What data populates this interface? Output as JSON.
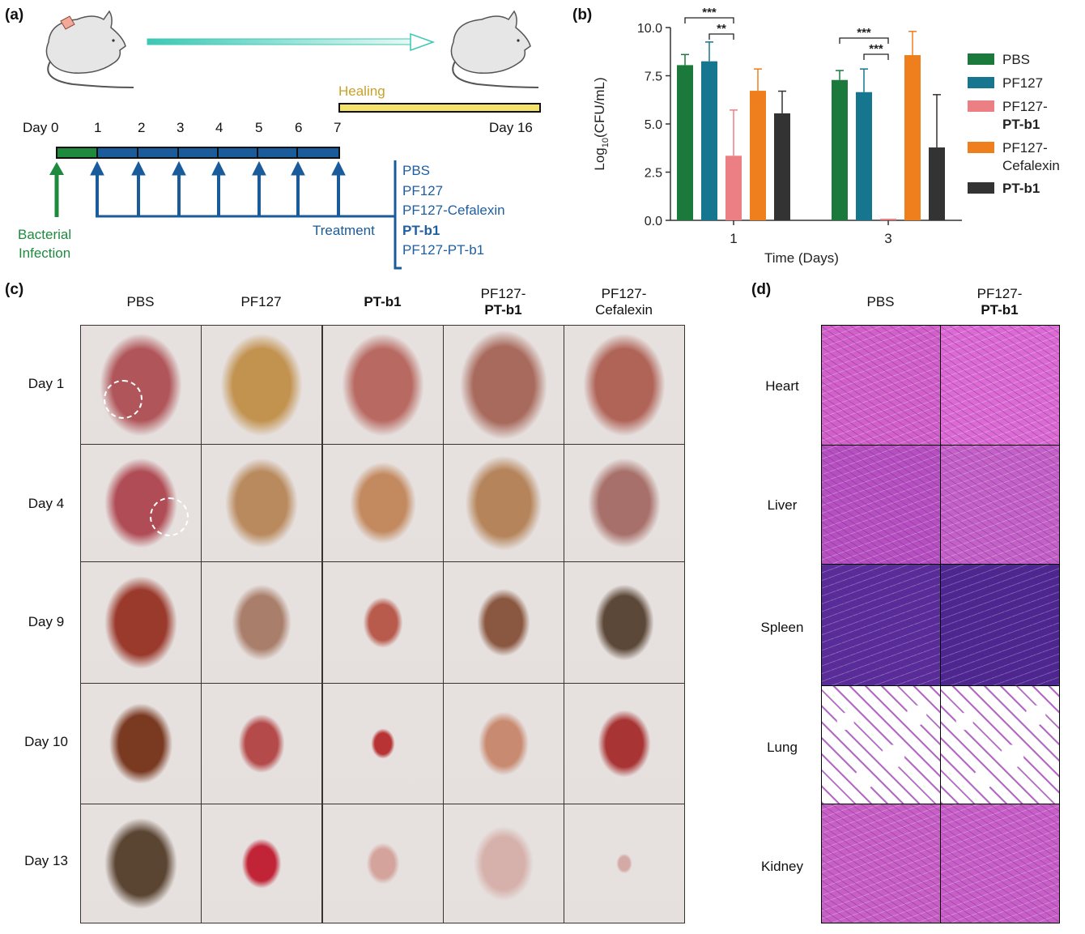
{
  "panels": {
    "a": {
      "label": "(a)",
      "healing_label": "Healing",
      "day_labels": [
        "Day 0",
        "1",
        "2",
        "3",
        "4",
        "5",
        "6",
        "7"
      ],
      "day_end": "Day 16",
      "infection_label_1": "Bacterial",
      "infection_label_2": "Infection",
      "treatment_label": "Treatment",
      "groups": [
        "PBS",
        "PF127",
        "PF127-Cefalexin",
        "PT-b1",
        "PF127-PT-b1"
      ],
      "colors": {
        "infection": "#1e8a3e",
        "treatment": "#1a5b9b",
        "healing": "#f5e26a",
        "healing_text": "#c9a227"
      }
    },
    "b": {
      "label": "(b)"
    },
    "c": {
      "label": "(c)",
      "columns": [
        {
          "line1": "PBS",
          "line2": ""
        },
        {
          "line1": "PF127",
          "line2": ""
        },
        {
          "line1": "",
          "line2": "PT-b1"
        },
        {
          "line1": "PF127-",
          "line2": "PT-b1"
        },
        {
          "line1": "PF127-",
          "line2": "Cefalexin"
        }
      ],
      "rows": [
        "Day 1",
        "Day 4",
        "Day 9",
        "Day 10",
        "Day 13"
      ]
    },
    "d": {
      "label": "(d)",
      "columns": [
        {
          "line1": "PBS",
          "line2": ""
        },
        {
          "line1": "PF127-",
          "line2": "PT-b1"
        }
      ],
      "rows": [
        "Heart",
        "Liver",
        "Spleen",
        "Lung",
        "Kidney"
      ]
    }
  },
  "chart_data": {
    "type": "bar",
    "title": "",
    "xlabel": "Time (Days)",
    "ylabel": "Log10(CFU/mL)",
    "ylim": [
      0,
      10
    ],
    "yticks": [
      "0.0",
      "2.5",
      "5.0",
      "7.5",
      "10.0"
    ],
    "categories": [
      "1",
      "3"
    ],
    "legend_position": "right",
    "series": [
      {
        "name": "PBS",
        "color": "#1b7a3b",
        "values": [
          8.05,
          7.28
        ],
        "error_upper": [
          8.6,
          7.77
        ]
      },
      {
        "name": "PF127",
        "color": "#16758f",
        "values": [
          8.25,
          6.65
        ],
        "error_upper": [
          9.25,
          7.85
        ]
      },
      {
        "name": "PF127-PT-b1",
        "color": "#ec7f84",
        "values": [
          3.35,
          0.0
        ],
        "error_upper": [
          5.72,
          0.0
        ]
      },
      {
        "name": "PF127-Cefalexin",
        "color": "#ef7f1c",
        "values": [
          6.72,
          8.57
        ],
        "error_upper": [
          7.85,
          9.8
        ]
      },
      {
        "name": "PT-b1",
        "color": "#333333",
        "values": [
          5.55,
          3.78
        ],
        "error_upper": [
          6.7,
          6.52
        ]
      }
    ],
    "legend": [
      {
        "line1": "PBS",
        "line2": ""
      },
      {
        "line1": "PF127",
        "line2": ""
      },
      {
        "line1": "PF127-",
        "line2": "PT-b1"
      },
      {
        "line1": "PF127-",
        "line2": "Cefalexin"
      },
      {
        "line1": "",
        "line2": "PT-b1"
      }
    ],
    "significance": [
      {
        "category": "1",
        "from": "PBS",
        "to": "PF127-PT-b1",
        "label": "***"
      },
      {
        "category": "1",
        "from": "PF127",
        "to": "PF127-PT-b1",
        "label": "**"
      },
      {
        "category": "3",
        "from": "PBS",
        "to": "PF127-PT-b1",
        "label": "***"
      },
      {
        "category": "3",
        "from": "PF127",
        "to": "PF127-PT-b1",
        "label": "***"
      }
    ]
  }
}
